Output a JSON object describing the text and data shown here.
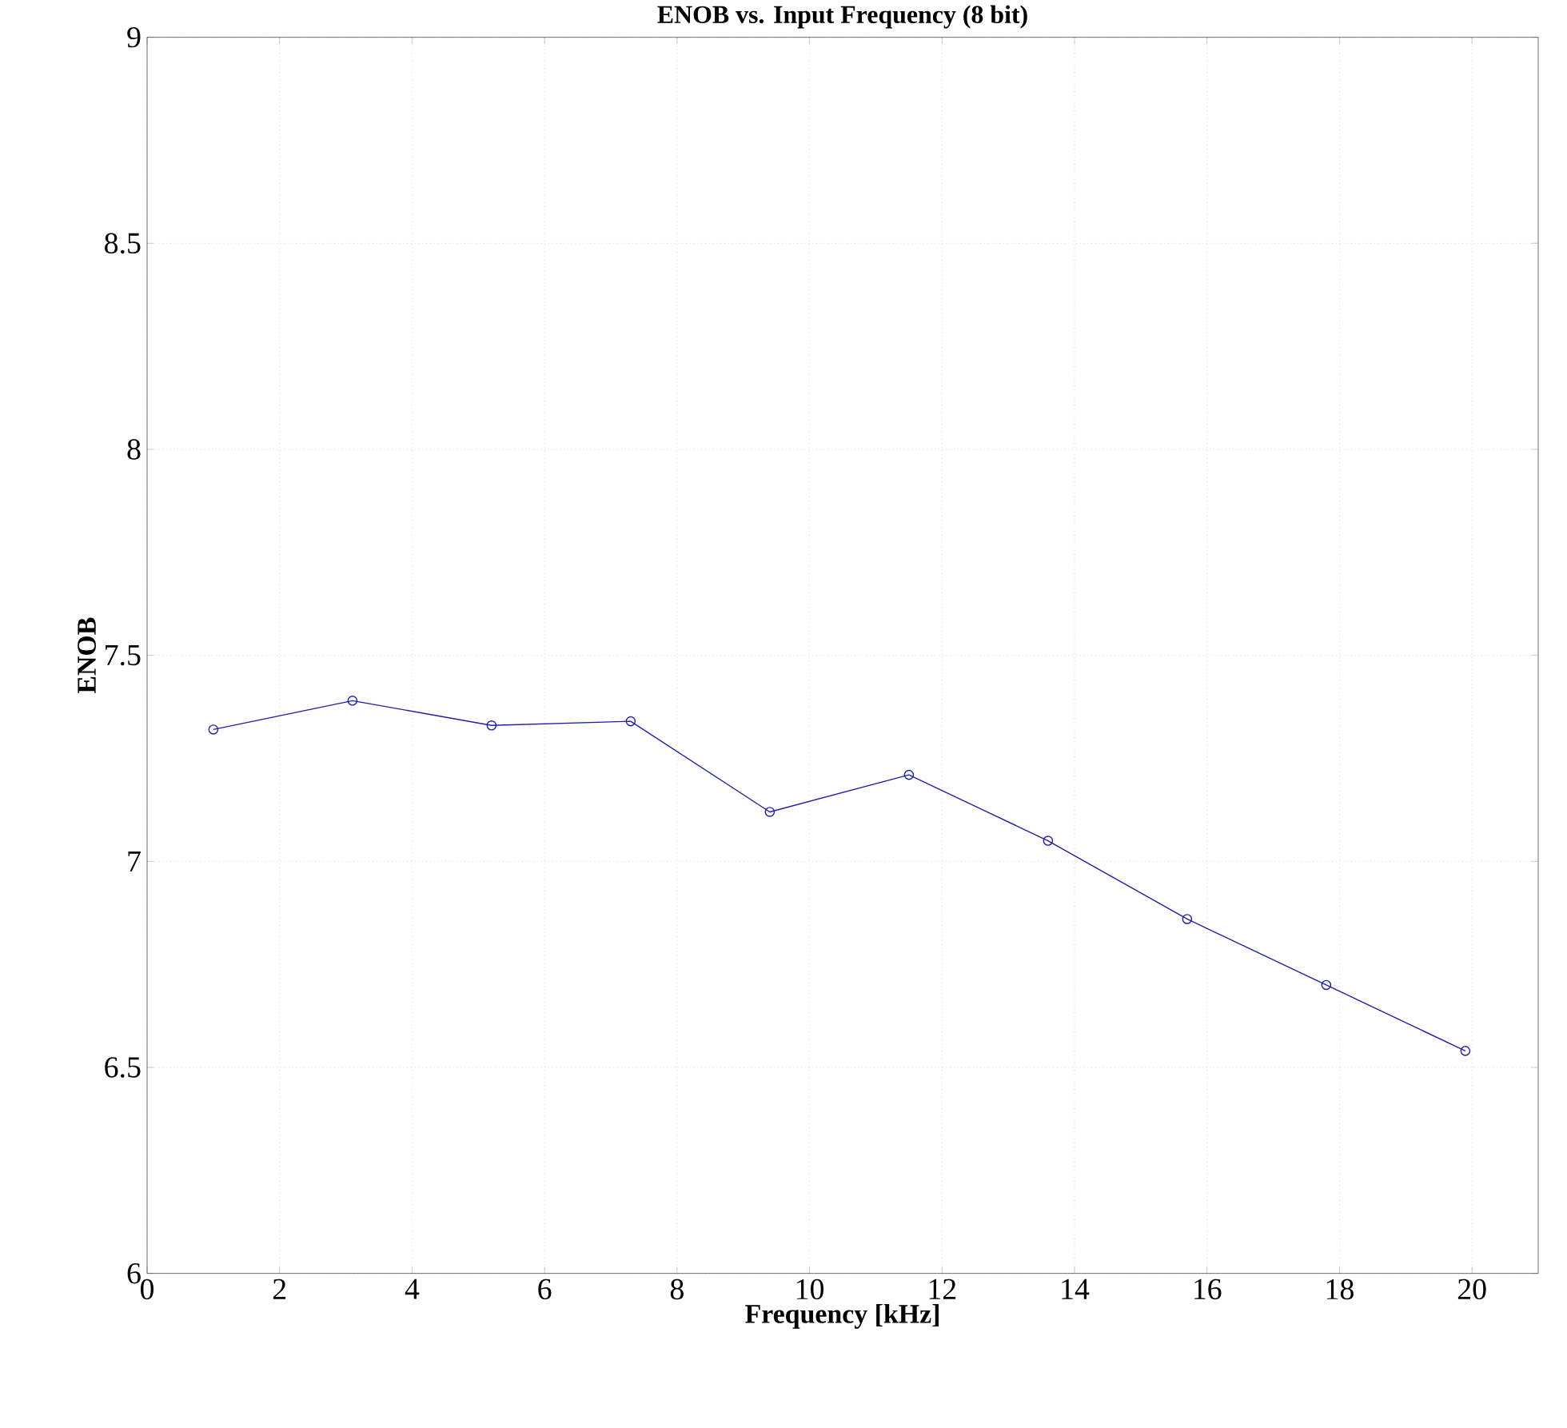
{
  "chart_data": {
    "type": "line",
    "title": "ENOB vs. Input Frequency (8 bit)",
    "xlabel": "Frequency [kHz]",
    "ylabel": "ENOB",
    "x": [
      1.0,
      3.1,
      5.2,
      7.3,
      9.4,
      11.5,
      13.6,
      15.7,
      17.8,
      19.9
    ],
    "series": [
      {
        "color": "#1f1fa8",
        "values": [
          7.32,
          7.39,
          7.33,
          7.34,
          7.12,
          7.21,
          7.05,
          6.86,
          6.7,
          6.54
        ]
      }
    ],
    "xlim": [
      0,
      21
    ],
    "ylim": [
      6,
      9
    ],
    "xticks": [
      0,
      2,
      4,
      6,
      8,
      10,
      12,
      14,
      16,
      18,
      20
    ],
    "yticks": [
      6,
      6.5,
      7,
      7.5,
      8,
      8.5,
      9
    ],
    "grid": true,
    "marker": "circle",
    "line_style": "solid"
  }
}
